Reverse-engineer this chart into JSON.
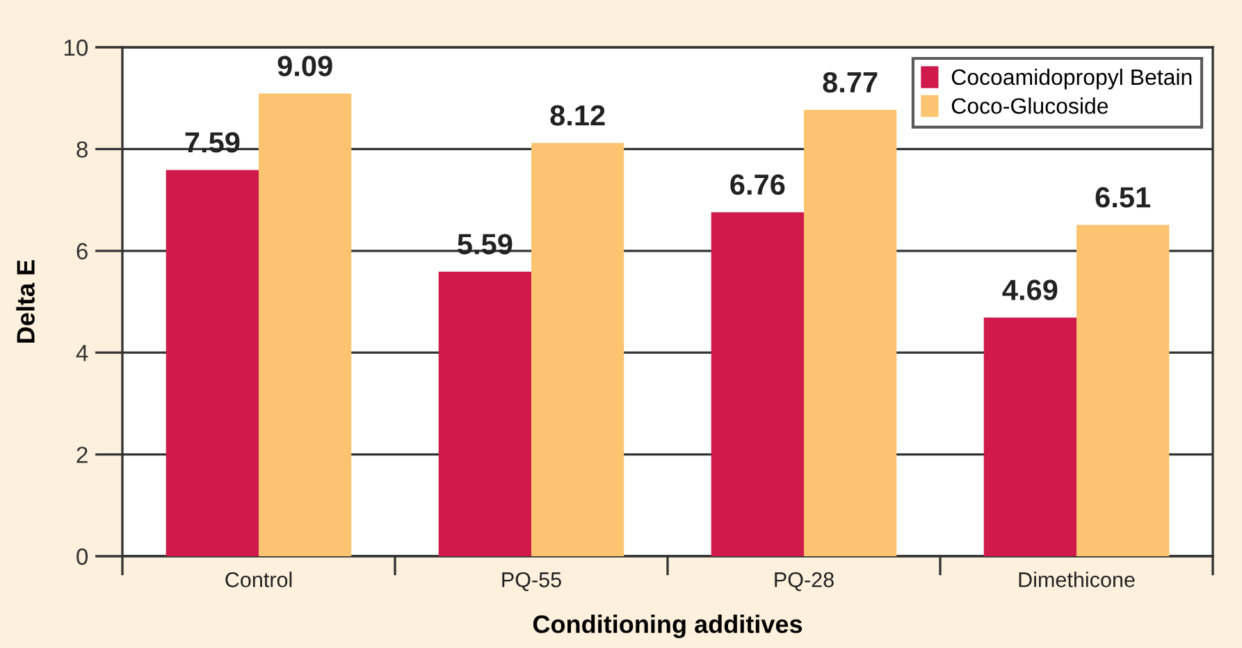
{
  "chart_data": {
    "type": "bar",
    "xlabel": "Conditioning additives",
    "ylabel": "Delta E",
    "categories": [
      "Control",
      "PQ-55",
      "PQ-28",
      "Dimethicone"
    ],
    "series": [
      {
        "name": "Cocoamidopropyl Betain",
        "color": "#cf1a4b",
        "values": [
          7.59,
          5.59,
          6.76,
          4.69
        ]
      },
      {
        "name": "Coco-Glucoside",
        "color": "#fcc470",
        "values": [
          9.09,
          8.12,
          8.77,
          6.51
        ]
      }
    ],
    "ylim": [
      0,
      10
    ],
    "yticks": [
      0,
      2,
      4,
      6,
      8,
      10
    ],
    "grid": "y",
    "legend": "top right",
    "data_labels": true
  }
}
